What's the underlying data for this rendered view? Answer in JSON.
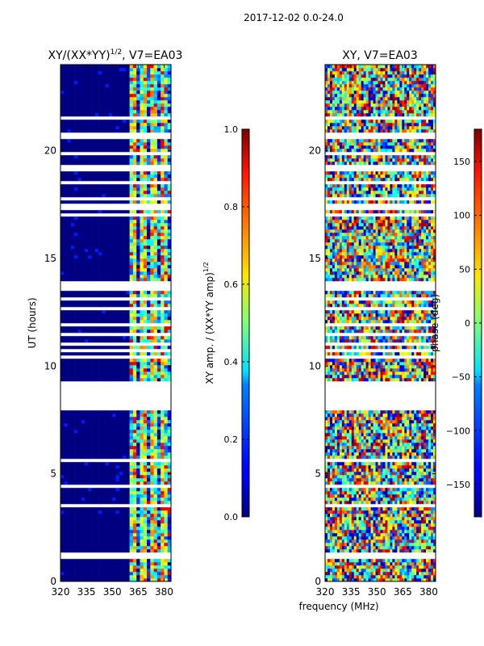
{
  "figure": {
    "suptitle": "2017-12-02 0.0-24.0",
    "xlabel": "frequency (MHz)"
  },
  "chart_data": [
    {
      "type": "heatmap",
      "title": "XY/(XX*YY)",
      "title_superscript": "1/2",
      "title_suffix": ", V7=EA03",
      "xlabel": "",
      "ylabel": "UT (hours)",
      "xlim": [
        320,
        384
      ],
      "ylim": [
        0,
        24
      ],
      "xticks": [
        320,
        335,
        350,
        365,
        380
      ],
      "yticks": [
        0,
        5,
        10,
        15,
        20
      ],
      "colormap": "jet",
      "colorbar": {
        "label": "XY amp. / (XX*YY amp)",
        "label_superscript": "1/2",
        "range": [
          0.0,
          1.0
        ],
        "ticks": [
          "0.0",
          "0.2",
          "0.4",
          "0.6",
          "0.8",
          "1.0"
        ]
      },
      "description_values": {
        "background_value": 0.0,
        "active_band_start_mhz": 361,
        "active_band_peak_value": 0.9
      }
    },
    {
      "type": "heatmap",
      "title": "XY, V7=EA03",
      "xlabel": "",
      "ylabel": "",
      "xlim": [
        320,
        384
      ],
      "ylim": [
        0,
        24
      ],
      "xticks": [
        320,
        335,
        350,
        365,
        380
      ],
      "yticks": [
        0,
        5,
        10,
        15,
        20
      ],
      "colormap": "jet",
      "colorbar": {
        "label": "phase (deg)",
        "range": [
          -180,
          180
        ],
        "ticks": [
          "150",
          "100",
          "50",
          "0",
          "−50",
          "−100",
          "−150"
        ],
        "tick_values": [
          150,
          100,
          50,
          0,
          -50,
          -100,
          -150
        ]
      }
    }
  ],
  "colors": {
    "jet_low": "#00007f",
    "jet_high": "#7f0000",
    "gap": "#ffffff"
  }
}
